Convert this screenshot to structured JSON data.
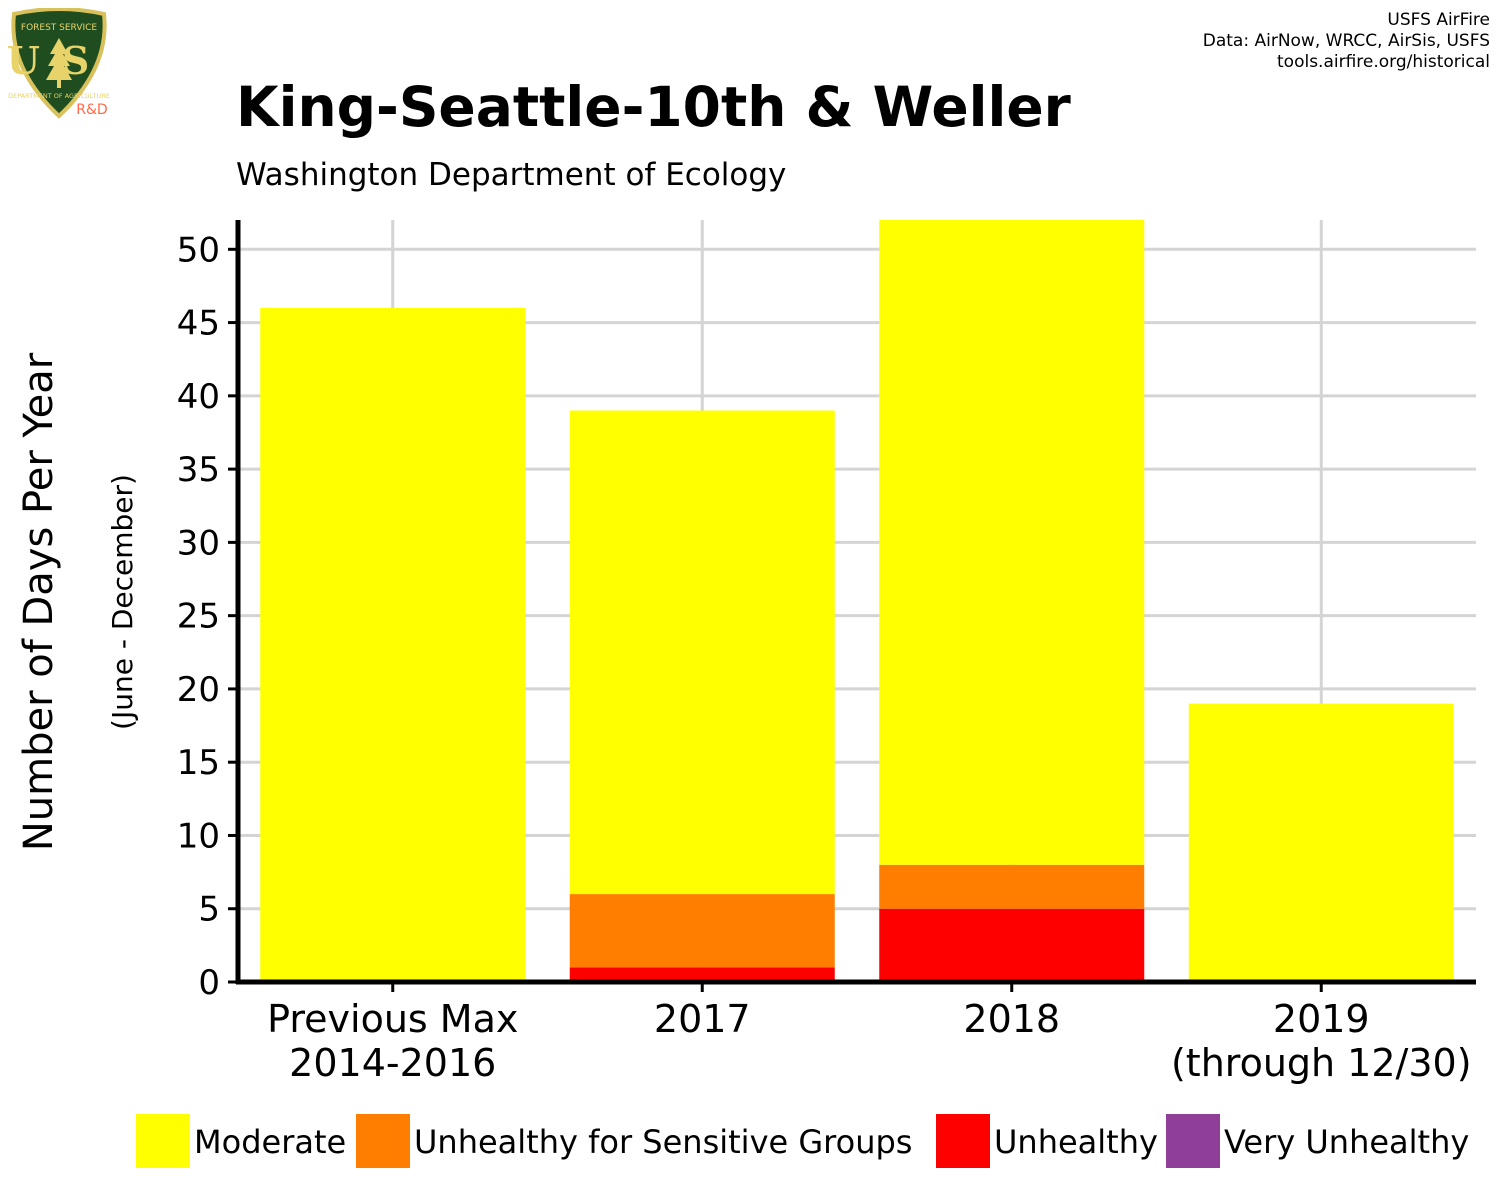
{
  "credits": {
    "line1": "USFS AirFire",
    "line2": "Data: AirNow, WRCC, AirSis, USFS",
    "line3": "tools.airfire.org/historical"
  },
  "logo": {
    "icon": "forest-service-shield-icon",
    "top_text": "FOREST SERVICE",
    "letters": "US",
    "bottom_text": "DEPARTMENT OF AGRICULTURE",
    "rd": "R&D",
    "colors": {
      "shield": "#1f4d1f",
      "border": "#d8c15a",
      "text": "#e8d36a",
      "rd": "#ff6b4a"
    }
  },
  "chart_data": {
    "type": "bar",
    "stacked": true,
    "title": "King-Seattle-10th & Weller",
    "subtitle": "Washington Department of Ecology",
    "ylabel": "Number of Days Per Year",
    "ylabel_sub": "(June - December)",
    "xlabel": "",
    "ylim": [
      0,
      52
    ],
    "yticks": [
      0,
      5,
      10,
      15,
      20,
      25,
      30,
      35,
      40,
      45,
      50
    ],
    "grid": true,
    "legend_position": "bottom",
    "categories": [
      [
        "Previous Max",
        "2014-2016"
      ],
      [
        "2017"
      ],
      [
        "2018"
      ],
      [
        "2019",
        "(through 12/30)"
      ]
    ],
    "series": [
      {
        "name": "Moderate",
        "color": "#ffff00",
        "values": [
          46,
          33,
          44,
          19
        ]
      },
      {
        "name": "Unhealthy for Sensitive Groups",
        "color": "#ff7e00",
        "values": [
          0,
          5,
          3,
          0
        ]
      },
      {
        "name": "Unhealthy",
        "color": "#ff0000",
        "values": [
          0,
          1,
          5,
          0
        ]
      },
      {
        "name": "Very Unhealthy",
        "color": "#8f3f97",
        "values": [
          0,
          0,
          0,
          0
        ]
      }
    ]
  }
}
